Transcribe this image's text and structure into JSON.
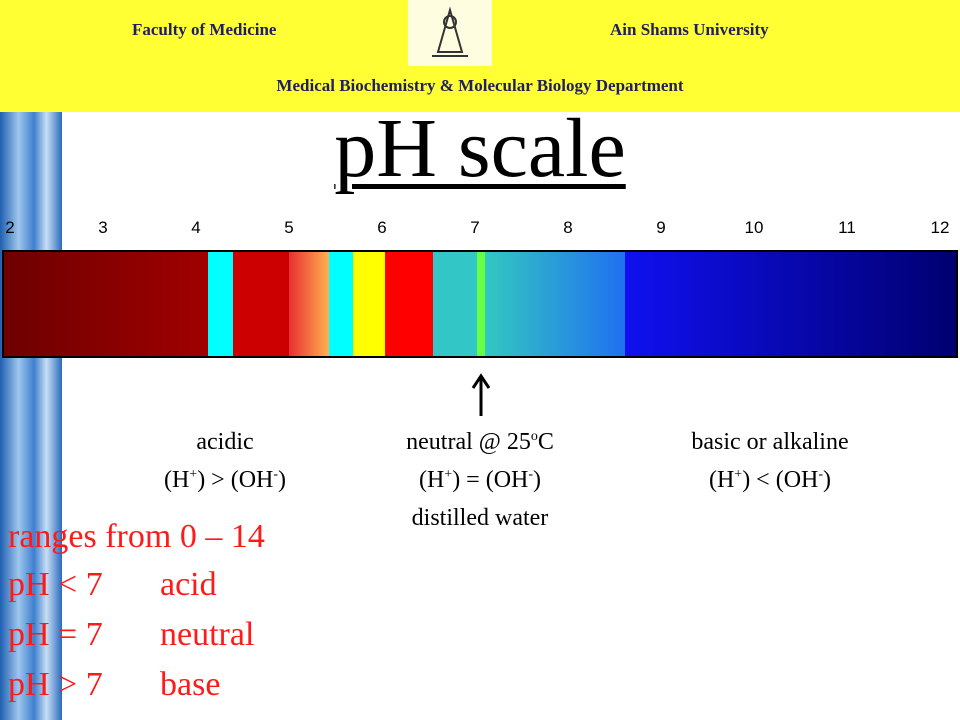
{
  "header": {
    "left": "Faculty of Medicine",
    "right": "Ain Shams University",
    "department": "Medical Biochemistry & Molecular Biology Department"
  },
  "title": "pH scale",
  "scale": {
    "labels": [
      2,
      3,
      4,
      5,
      6,
      7,
      8,
      9,
      10,
      11,
      12
    ]
  },
  "regions": [
    {
      "name": "acidic",
      "relation": [
        "(H",
        "+",
        ") > (OH",
        "-",
        ")"
      ]
    },
    {
      "name": [
        "neutral @ 25",
        "o",
        "C"
      ],
      "relation": [
        "(H",
        "+",
        ") = (OH",
        "-",
        ")"
      ],
      "note": "distilled water"
    },
    {
      "name": "basic or alkaline",
      "relation": [
        "(H",
        "+",
        ") < (OH",
        "-",
        ")"
      ]
    }
  ],
  "summary": {
    "range": "ranges from 0 – 14",
    "rows": [
      [
        "pH < 7",
        "acid"
      ],
      [
        "pH = 7",
        "neutral"
      ],
      [
        "pH > 7",
        "base"
      ]
    ]
  }
}
